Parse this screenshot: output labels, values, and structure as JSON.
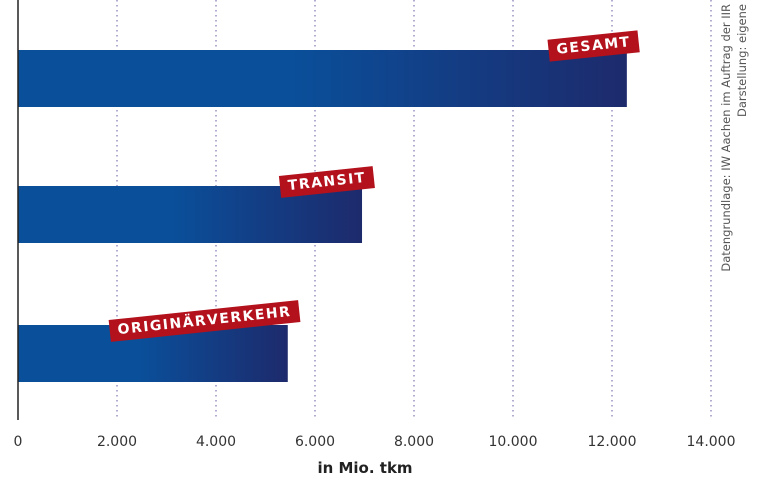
{
  "chart_data": {
    "type": "bar",
    "orientation": "horizontal",
    "categories": [
      "GESAMT",
      "TRANSIT",
      "ORIGINÄRVERKEHR"
    ],
    "values": [
      12300,
      6950,
      5450
    ],
    "xlabel": "in Mio. tkm",
    "xlim": [
      0,
      14000
    ],
    "xticks": [
      0,
      2000,
      4000,
      6000,
      8000,
      10000,
      12000,
      14000
    ],
    "xtick_labels": [
      "0",
      "2.000",
      "4.000",
      "6.000",
      "8.000",
      "10.000",
      "12.000",
      "14.000"
    ],
    "grid": "vertical-dotted",
    "colors": {
      "bar_start": "#0a4f9a",
      "bar_end": "#1d2a6c",
      "label_bg": "#b3111c",
      "grid": "#8a7fb8"
    }
  },
  "source": {
    "line1": "Datengrundlage: IW Aachen im Auftrag der IIR",
    "line2": "Darstellung: eigene"
  }
}
